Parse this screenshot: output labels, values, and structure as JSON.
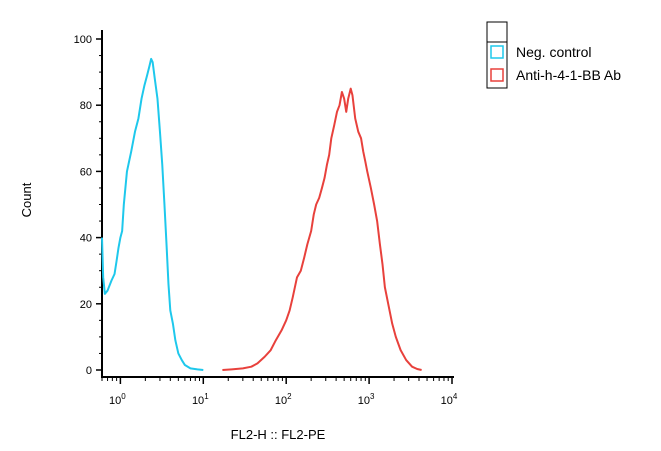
{
  "chart_data": {
    "type": "line",
    "title": "",
    "xlabel": "FL2-H :: FL2-PE",
    "ylabel": "Count",
    "x_scale": "log",
    "xlim": [
      0.6,
      10000
    ],
    "ylim": [
      0,
      100
    ],
    "x_ticks": [
      {
        "value": 1,
        "base": "10",
        "exp": "0"
      },
      {
        "value": 10,
        "base": "10",
        "exp": "1"
      },
      {
        "value": 100,
        "base": "10",
        "exp": "2"
      },
      {
        "value": 1000,
        "base": "10",
        "exp": "3"
      },
      {
        "value": 10000,
        "base": "10",
        "exp": "4"
      }
    ],
    "y_ticks": [
      "0",
      "20",
      "40",
      "60",
      "80",
      "100"
    ],
    "grid": false,
    "legend_position": "top-right",
    "series": [
      {
        "name": "Neg. control",
        "color": "#1ec8ec",
        "points": [
          [
            0.6,
            40
          ],
          [
            0.62,
            28
          ],
          [
            0.65,
            23
          ],
          [
            0.7,
            24
          ],
          [
            0.78,
            27
          ],
          [
            0.85,
            29
          ],
          [
            0.9,
            33
          ],
          [
            0.95,
            37
          ],
          [
            1.0,
            40
          ],
          [
            1.05,
            42
          ],
          [
            1.1,
            50
          ],
          [
            1.2,
            60
          ],
          [
            1.35,
            66
          ],
          [
            1.5,
            72
          ],
          [
            1.65,
            76
          ],
          [
            1.8,
            82
          ],
          [
            1.95,
            86
          ],
          [
            2.1,
            89
          ],
          [
            2.25,
            92
          ],
          [
            2.35,
            94
          ],
          [
            2.45,
            93
          ],
          [
            2.6,
            88
          ],
          [
            2.8,
            82
          ],
          [
            3.0,
            72
          ],
          [
            3.2,
            62
          ],
          [
            3.4,
            50
          ],
          [
            3.6,
            38
          ],
          [
            3.8,
            26
          ],
          [
            4.0,
            18
          ],
          [
            4.3,
            14
          ],
          [
            4.6,
            9
          ],
          [
            5.0,
            5
          ],
          [
            5.5,
            3
          ],
          [
            6.0,
            1.5
          ],
          [
            7.0,
            0.5
          ],
          [
            8.5,
            0.2
          ],
          [
            10.0,
            0
          ]
        ]
      },
      {
        "name": "Anti-h-4-1-BB Ab",
        "color": "#e8413c",
        "points": [
          [
            17,
            0
          ],
          [
            22,
            0.2
          ],
          [
            30,
            0.5
          ],
          [
            38,
            1
          ],
          [
            45,
            2
          ],
          [
            55,
            4
          ],
          [
            65,
            6
          ],
          [
            75,
            9
          ],
          [
            88,
            12
          ],
          [
            100,
            15
          ],
          [
            110,
            18
          ],
          [
            120,
            22
          ],
          [
            135,
            28
          ],
          [
            150,
            30
          ],
          [
            165,
            34
          ],
          [
            180,
            38
          ],
          [
            200,
            42
          ],
          [
            215,
            47
          ],
          [
            230,
            50
          ],
          [
            250,
            52
          ],
          [
            270,
            55
          ],
          [
            290,
            58
          ],
          [
            310,
            62
          ],
          [
            330,
            65
          ],
          [
            350,
            70
          ],
          [
            380,
            74
          ],
          [
            410,
            78
          ],
          [
            440,
            80
          ],
          [
            470,
            84
          ],
          [
            500,
            82
          ],
          [
            530,
            78
          ],
          [
            560,
            82
          ],
          [
            600,
            85
          ],
          [
            630,
            83
          ],
          [
            680,
            76
          ],
          [
            740,
            72
          ],
          [
            800,
            70
          ],
          [
            850,
            66
          ],
          [
            900,
            63
          ],
          [
            950,
            60
          ],
          [
            1050,
            55
          ],
          [
            1150,
            50
          ],
          [
            1250,
            45
          ],
          [
            1350,
            38
          ],
          [
            1450,
            32
          ],
          [
            1550,
            25
          ],
          [
            1700,
            20
          ],
          [
            1900,
            14
          ],
          [
            2100,
            10
          ],
          [
            2400,
            6
          ],
          [
            2800,
            3
          ],
          [
            3300,
            1
          ],
          [
            3800,
            0.3
          ],
          [
            4300,
            0
          ]
        ]
      }
    ]
  }
}
